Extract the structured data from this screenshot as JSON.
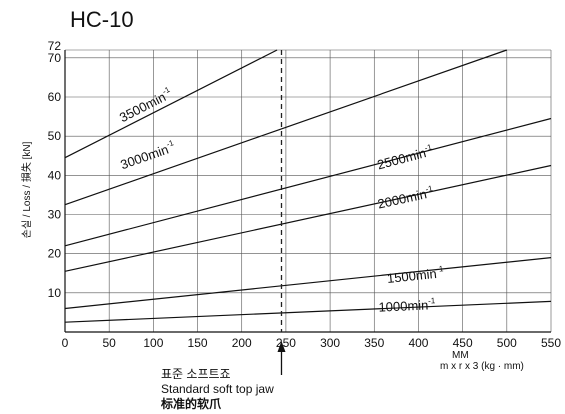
{
  "chart_data": {
    "type": "line",
    "title": "HC-10",
    "ylabel": "손실 / Loss / 損失 [kN]",
    "xlabel": "MM",
    "xlabel_sub": "m x r x 3 (kg · mm)",
    "xlim": [
      0,
      550
    ],
    "ylim": [
      0,
      72
    ],
    "x_ticks": [
      0,
      50,
      100,
      150,
      200,
      250,
      300,
      350,
      400,
      450,
      500,
      550
    ],
    "y_ticks": [
      10,
      20,
      30,
      40,
      50,
      60,
      70,
      72
    ],
    "grid": true,
    "series": [
      {
        "label_main": "1000min",
        "label_sup": "-1",
        "x": [
          0,
          550
        ],
        "y": [
          2.5,
          7.8
        ],
        "label_x": 355,
        "label_y": 5.2
      },
      {
        "label_main": "1500min",
        "label_sup": "-1",
        "x": [
          0,
          550
        ],
        "y": [
          6,
          19
        ],
        "label_x": 365,
        "label_y": 12.5
      },
      {
        "label_main": "2000min",
        "label_sup": "-1",
        "x": [
          0,
          550
        ],
        "y": [
          15.5,
          42.5
        ],
        "label_x": 355,
        "label_y": 31.5
      },
      {
        "label_main": "2500min",
        "label_sup": "-1",
        "x": [
          0,
          550
        ],
        "y": [
          22,
          54.5
        ],
        "label_x": 355,
        "label_y": 41.5
      },
      {
        "label_main": "3000min",
        "label_sup": "-1",
        "x": [
          0,
          500
        ],
        "y": [
          32.5,
          72
        ],
        "label_x": 65,
        "label_y": 41.5
      },
      {
        "label_main": "3500min",
        "label_sup": "-1",
        "x": [
          0,
          240
        ],
        "y": [
          44.5,
          72
        ],
        "label_x": 65,
        "label_y": 53.5
      }
    ],
    "marker": {
      "x": 245,
      "label_ko": "표준 소프트죠",
      "label_en": "Standard soft top jaw",
      "label_zh": "标准的软爪"
    }
  }
}
